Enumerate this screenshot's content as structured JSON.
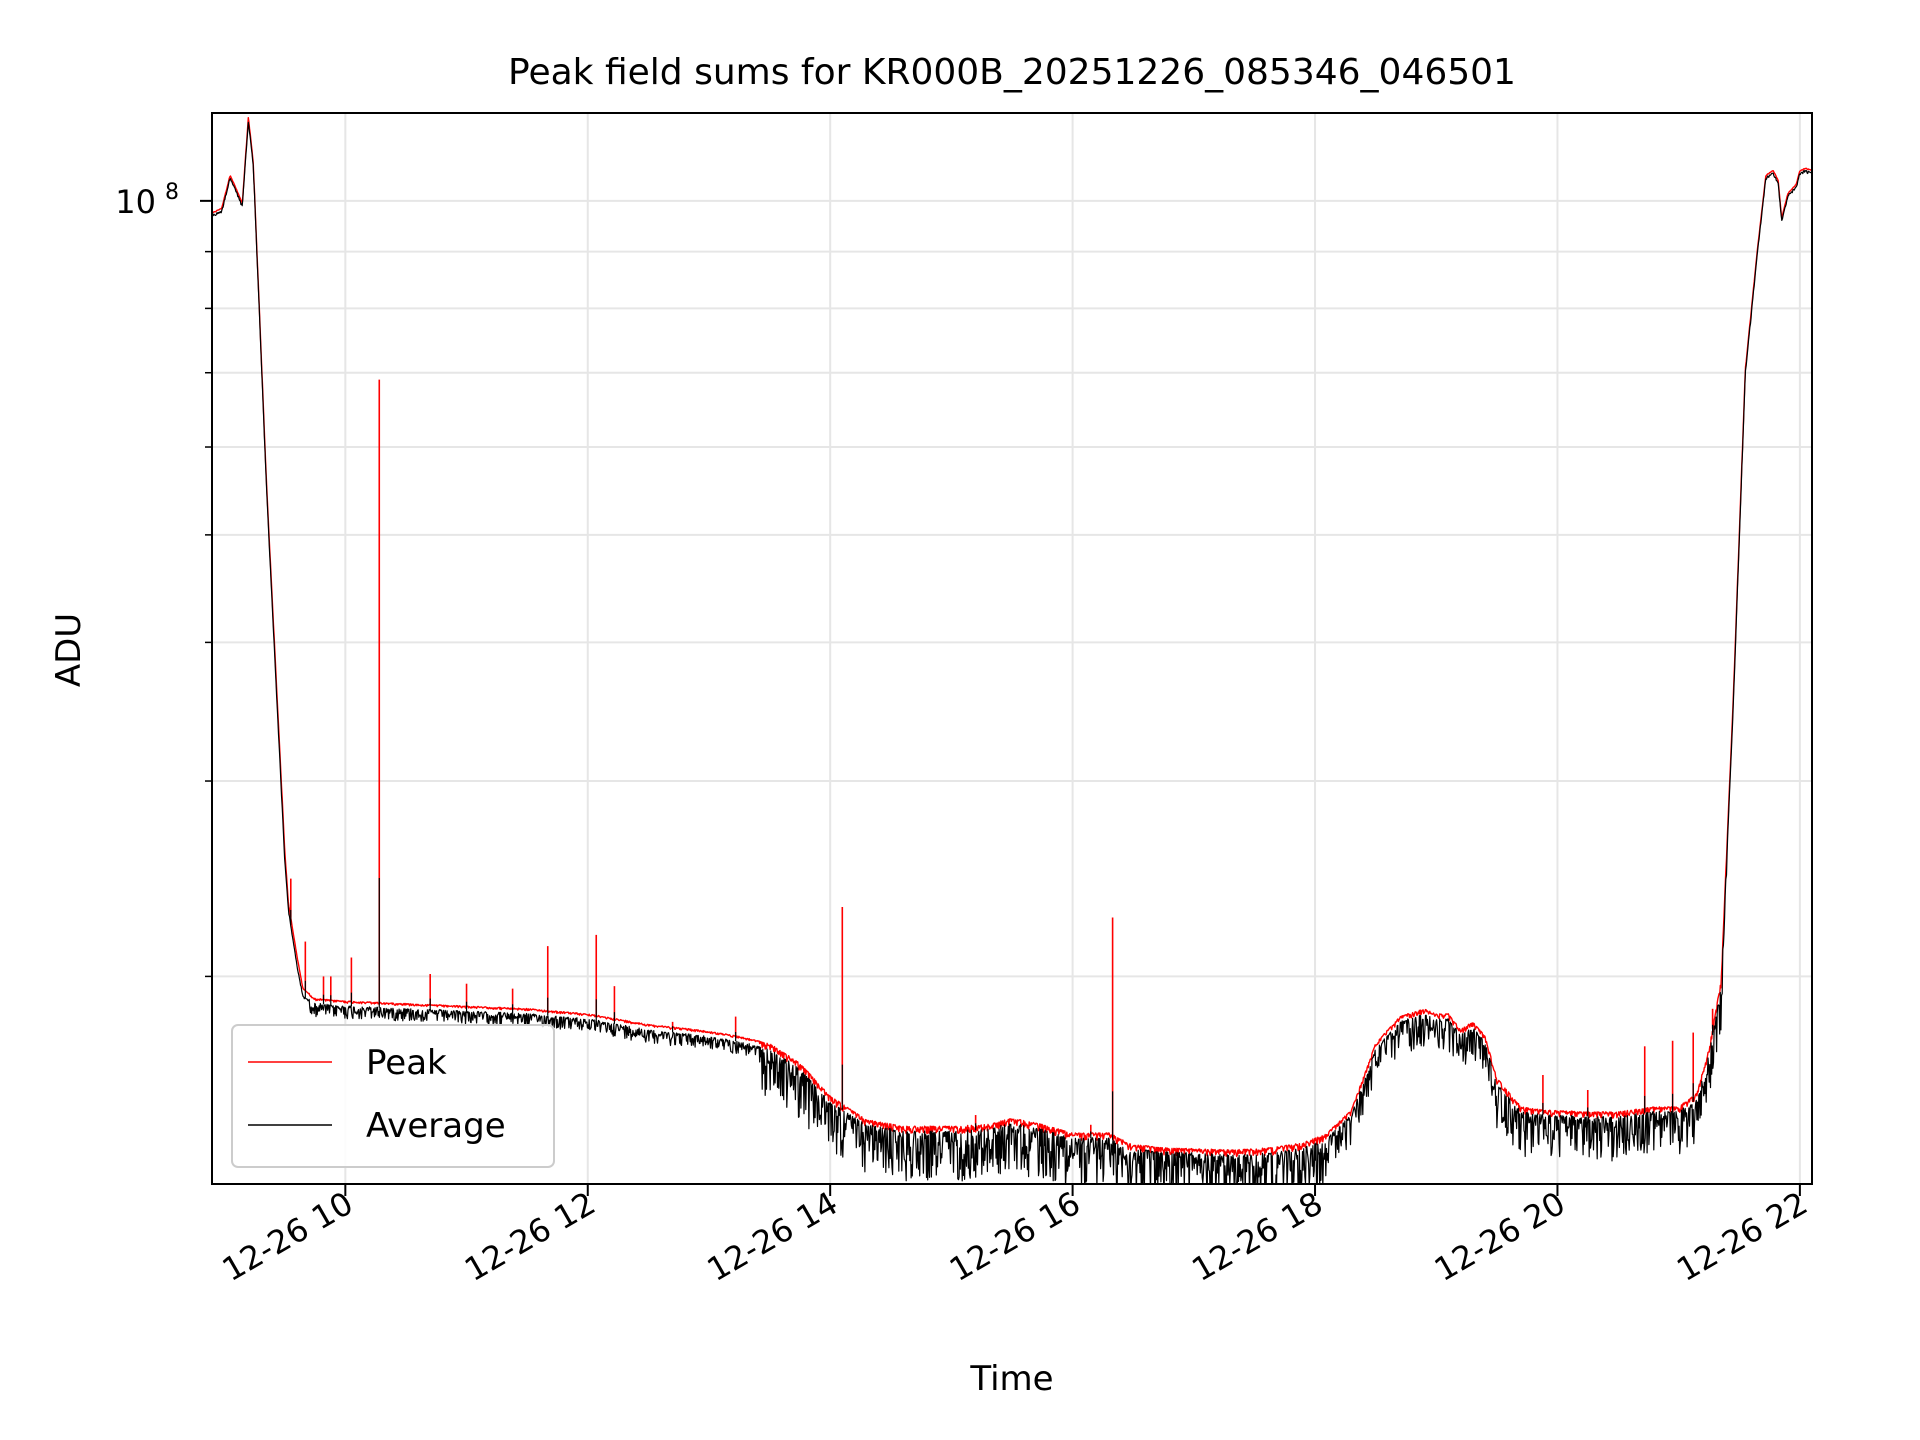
{
  "chart_data": {
    "type": "line",
    "title": "Peak field sums for KR000B_20251226_085346_046501",
    "xlabel": "Time",
    "ylabel": "ADU",
    "yscale": "log",
    "grid": true,
    "legend_position": "lower-left",
    "x_unit": "hours since 12-26 00:00",
    "xlim": [
      8.9,
      22.1
    ],
    "ylim": [
      13000000,
      120000000
    ],
    "x_ticks": [
      {
        "value": 10,
        "label": "12-26 10"
      },
      {
        "value": 12,
        "label": "12-26 12"
      },
      {
        "value": 14,
        "label": "12-26 14"
      },
      {
        "value": 16,
        "label": "12-26 16"
      },
      {
        "value": 18,
        "label": "12-26 18"
      },
      {
        "value": 20,
        "label": "12-26 20"
      },
      {
        "value": 22,
        "label": "12-26 22"
      }
    ],
    "y_major_ticks": [
      {
        "value": 100000000,
        "base": "10",
        "exponent": "8"
      }
    ],
    "y_minor_ticks": [
      20000000,
      30000000,
      40000000,
      50000000,
      60000000,
      70000000,
      80000000,
      90000000
    ],
    "series": [
      {
        "name": "Average",
        "color": "#000000",
        "x": [
          8.9,
          8.98,
          9.05,
          9.1,
          9.15,
          9.2,
          9.24,
          9.3,
          9.35,
          9.5,
          9.53,
          9.6,
          9.65,
          9.75,
          10.0,
          10.5,
          11.0,
          11.5,
          12.0,
          12.5,
          12.9,
          13.2,
          13.5,
          13.75,
          14.0,
          14.3,
          14.6,
          15.0,
          15.3,
          15.5,
          15.7,
          15.9,
          16.0,
          16.3,
          16.5,
          16.8,
          17.0,
          17.3,
          17.6,
          17.9,
          18.1,
          18.3,
          18.5,
          18.7,
          18.9,
          19.0,
          19.1,
          19.2,
          19.3,
          19.4,
          19.5,
          19.7,
          19.9,
          20.2,
          20.5,
          20.8,
          21.0,
          21.15,
          21.25,
          21.35,
          21.45,
          21.55,
          21.65,
          21.72,
          21.78,
          21.82,
          21.85,
          21.9,
          21.97,
          22.0,
          22.05,
          22.1
        ],
        "y": [
          97000000,
          98000000,
          105000000,
          102000000,
          99000000,
          118000000,
          108000000,
          75000000,
          55000000,
          25500000,
          23000000,
          20500000,
          19200000,
          18900000,
          18800000,
          18700000,
          18600000,
          18500000,
          18300000,
          17900000,
          17700000,
          17500000,
          17200000,
          16500000,
          15400000,
          14700000,
          14500000,
          14500000,
          14550000,
          14750000,
          14600000,
          14400000,
          14300000,
          14300000,
          13950000,
          13900000,
          13850000,
          13800000,
          13850000,
          14000000,
          14300000,
          15000000,
          17200000,
          18200000,
          18500000,
          18300000,
          18300000,
          17700000,
          18000000,
          17500000,
          16000000,
          15100000,
          15000000,
          14950000,
          14950000,
          15100000,
          15100000,
          15500000,
          17000000,
          19500000,
          35000000,
          70000000,
          90000000,
          105000000,
          106000000,
          104000000,
          96000000,
          101000000,
          103000000,
          106000000,
          106500000,
          106000000
        ]
      },
      {
        "name": "Peak",
        "color": "#ff0000",
        "x": [
          8.9,
          8.98,
          9.05,
          9.1,
          9.15,
          9.2,
          9.24,
          9.3,
          9.35,
          9.5,
          9.53,
          9.6,
          9.65,
          9.75,
          10.0,
          10.5,
          11.0,
          11.5,
          12.0,
          12.5,
          12.9,
          13.2,
          13.5,
          13.75,
          14.0,
          14.3,
          14.6,
          15.0,
          15.3,
          15.5,
          15.7,
          15.9,
          16.0,
          16.3,
          16.5,
          16.8,
          17.0,
          17.3,
          17.6,
          17.9,
          18.1,
          18.3,
          18.5,
          18.7,
          18.9,
          19.0,
          19.1,
          19.2,
          19.3,
          19.4,
          19.5,
          19.7,
          19.9,
          20.2,
          20.5,
          20.8,
          21.0,
          21.15,
          21.25,
          21.35,
          21.45,
          21.55,
          21.65,
          21.72,
          21.78,
          21.82,
          21.85,
          21.9,
          21.97,
          22.0,
          22.05,
          22.1
        ],
        "y": [
          97500000,
          98500000,
          105500000,
          102500000,
          99500000,
          119000000,
          108500000,
          75500000,
          55500000,
          26000000,
          23300000,
          20900000,
          19500000,
          19100000,
          19000000,
          18900000,
          18800000,
          18700000,
          18500000,
          18100000,
          17900000,
          17700000,
          17400000,
          16700000,
          15600000,
          14850000,
          14650000,
          14650000,
          14700000,
          14900000,
          14750000,
          14550000,
          14450000,
          14450000,
          14100000,
          14000000,
          13980000,
          13950000,
          14000000,
          14150000,
          14450000,
          15150000,
          17400000,
          18400000,
          18700000,
          18500000,
          18500000,
          17900000,
          18200000,
          17700000,
          16200000,
          15250000,
          15150000,
          15100000,
          15100000,
          15250000,
          15250000,
          15700000,
          17200000,
          19800000,
          35500000,
          70500000,
          90500000,
          105500000,
          106500000,
          104500000,
          96500000,
          101500000,
          103500000,
          106500000,
          107000000,
          106500000
        ]
      }
    ],
    "peak_spikes": [
      {
        "x": 9.55,
        "y": 24500000
      },
      {
        "x": 9.67,
        "y": 21500000
      },
      {
        "x": 9.82,
        "y": 20000000
      },
      {
        "x": 9.88,
        "y": 20000000
      },
      {
        "x": 10.05,
        "y": 20800000
      },
      {
        "x": 10.28,
        "y": 69000000
      },
      {
        "x": 10.7,
        "y": 20100000
      },
      {
        "x": 11.0,
        "y": 19700000
      },
      {
        "x": 11.38,
        "y": 19500000
      },
      {
        "x": 11.67,
        "y": 21300000
      },
      {
        "x": 12.07,
        "y": 21800000
      },
      {
        "x": 12.22,
        "y": 19600000
      },
      {
        "x": 12.7,
        "y": 18200000
      },
      {
        "x": 13.22,
        "y": 18400000
      },
      {
        "x": 14.1,
        "y": 23100000
      },
      {
        "x": 15.2,
        "y": 15000000
      },
      {
        "x": 16.15,
        "y": 14700000
      },
      {
        "x": 16.33,
        "y": 22600000
      },
      {
        "x": 19.88,
        "y": 16300000
      },
      {
        "x": 20.25,
        "y": 15800000
      },
      {
        "x": 20.72,
        "y": 17300000
      },
      {
        "x": 20.95,
        "y": 17500000
      },
      {
        "x": 21.12,
        "y": 17800000
      },
      {
        "x": 21.28,
        "y": 18700000
      }
    ],
    "legend": [
      {
        "label": "Peak",
        "color": "#ff0000"
      },
      {
        "label": "Average",
        "color": "#000000"
      }
    ]
  }
}
